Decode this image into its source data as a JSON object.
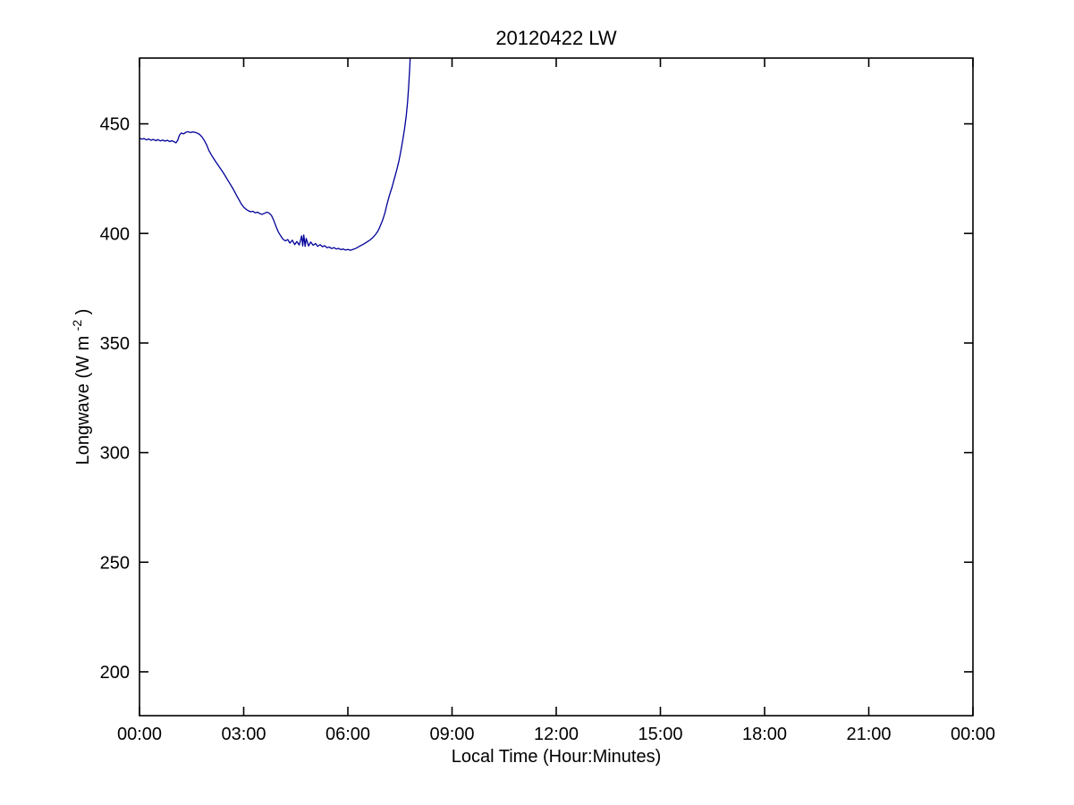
{
  "window": {
    "background": "#ffffff"
  },
  "chart_data": {
    "type": "line",
    "title": "20120422 LW",
    "xlabel": "Local Time (Hour:Minutes)",
    "ylabel": "Longwave (W m-2)",
    "ylabel_parts": {
      "base": "Longwave (W m",
      "sup": "-2",
      "close": ")"
    },
    "xlim": [
      0,
      24
    ],
    "ylim": [
      180,
      480
    ],
    "xticks": {
      "values": [
        0,
        3,
        6,
        9,
        12,
        15,
        18,
        21,
        24
      ],
      "labels": [
        "00:00",
        "03:00",
        "06:00",
        "09:00",
        "12:00",
        "15:00",
        "18:00",
        "21:00",
        "00:00"
      ]
    },
    "yticks": {
      "values": [
        200,
        250,
        300,
        350,
        400,
        450
      ],
      "labels": [
        "200",
        "250",
        "300",
        "350",
        "400",
        "450"
      ]
    },
    "grid": false,
    "box": true,
    "legend": "none",
    "axis_color": "#000000",
    "line_color": "#000099",
    "series": [
      {
        "name": "longwave",
        "x": [
          0.0,
          0.07,
          0.13,
          0.2,
          0.27,
          0.33,
          0.4,
          0.47,
          0.53,
          0.6,
          0.67,
          0.73,
          0.8,
          0.87,
          0.93,
          1.0,
          1.05,
          1.1,
          1.15,
          1.2,
          1.27,
          1.33,
          1.4,
          1.47,
          1.53,
          1.6,
          1.67,
          1.73,
          1.8,
          1.87,
          1.93,
          2.0,
          2.07,
          2.13,
          2.2,
          2.27,
          2.33,
          2.4,
          2.47,
          2.53,
          2.6,
          2.67,
          2.73,
          2.8,
          2.87,
          2.93,
          3.0,
          3.07,
          3.13,
          3.2,
          3.27,
          3.33,
          3.4,
          3.47,
          3.53,
          3.6,
          3.67,
          3.73,
          3.8,
          3.87,
          3.93,
          4.0,
          4.07,
          4.13,
          4.2,
          4.27,
          4.33,
          4.4,
          4.47,
          4.53,
          4.6,
          4.67,
          4.7,
          4.73,
          4.77,
          4.8,
          4.87,
          4.93,
          5.0,
          5.07,
          5.13,
          5.2,
          5.27,
          5.33,
          5.4,
          5.47,
          5.53,
          5.6,
          5.67,
          5.73,
          5.8,
          5.87,
          5.93,
          6.0,
          6.07,
          6.13,
          6.2,
          6.27,
          6.33,
          6.4,
          6.47,
          6.53,
          6.6,
          6.67,
          6.73,
          6.8,
          6.87,
          6.93,
          7.0,
          7.07,
          7.13,
          7.2,
          7.27,
          7.33,
          7.4,
          7.47,
          7.53,
          7.58,
          7.63,
          7.68,
          7.72,
          7.75,
          7.78,
          7.8
        ],
        "y": [
          443.4,
          443.0,
          443.3,
          442.7,
          443.1,
          442.5,
          442.9,
          442.3,
          442.8,
          442.2,
          442.6,
          442.1,
          442.5,
          441.9,
          442.3,
          441.8,
          441.3,
          442.5,
          444.8,
          445.8,
          445.4,
          446.1,
          446.4,
          446.0,
          446.3,
          446.1,
          445.7,
          445.2,
          444.0,
          442.3,
          440.5,
          437.8,
          435.8,
          434.3,
          432.6,
          431.0,
          429.6,
          428.0,
          426.2,
          424.6,
          422.8,
          421.0,
          419.3,
          417.2,
          415.2,
          413.5,
          412.0,
          411.0,
          410.4,
          409.9,
          410.1,
          409.4,
          409.7,
          409.0,
          408.7,
          409.2,
          409.7,
          409.3,
          408.2,
          405.8,
          403.2,
          400.6,
          398.8,
          397.4,
          396.6,
          397.2,
          395.6,
          396.9,
          394.9,
          396.3,
          394.7,
          398.9,
          394.3,
          399.3,
          394.1,
          397.7,
          394.3,
          396.1,
          394.6,
          395.4,
          394.1,
          394.9,
          393.9,
          394.4,
          393.5,
          393.8,
          393.1,
          393.5,
          392.9,
          393.2,
          392.6,
          392.9,
          392.4,
          392.7,
          392.3,
          392.6,
          393.0,
          393.5,
          394.1,
          394.7,
          395.3,
          395.9,
          396.6,
          397.4,
          398.3,
          399.6,
          401.2,
          403.3,
          406.0,
          409.5,
          413.5,
          417.5,
          421.0,
          424.5,
          428.5,
          433.0,
          438.0,
          442.5,
          447.5,
          453.5,
          460.0,
          467.0,
          475.0,
          482.0
        ]
      }
    ]
  }
}
